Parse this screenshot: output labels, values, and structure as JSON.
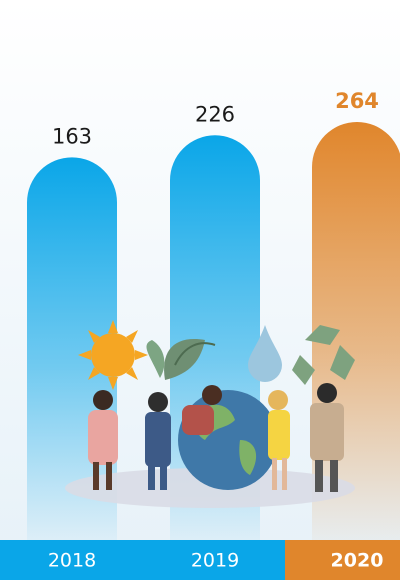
{
  "chart_data": {
    "type": "bar",
    "categories": [
      "2018",
      "2019",
      "2020"
    ],
    "values": [
      163,
      226,
      264
    ],
    "colors": [
      "#0aa6e8",
      "#0aa6e8",
      "#e0862c"
    ],
    "highlight": 2
  }
}
